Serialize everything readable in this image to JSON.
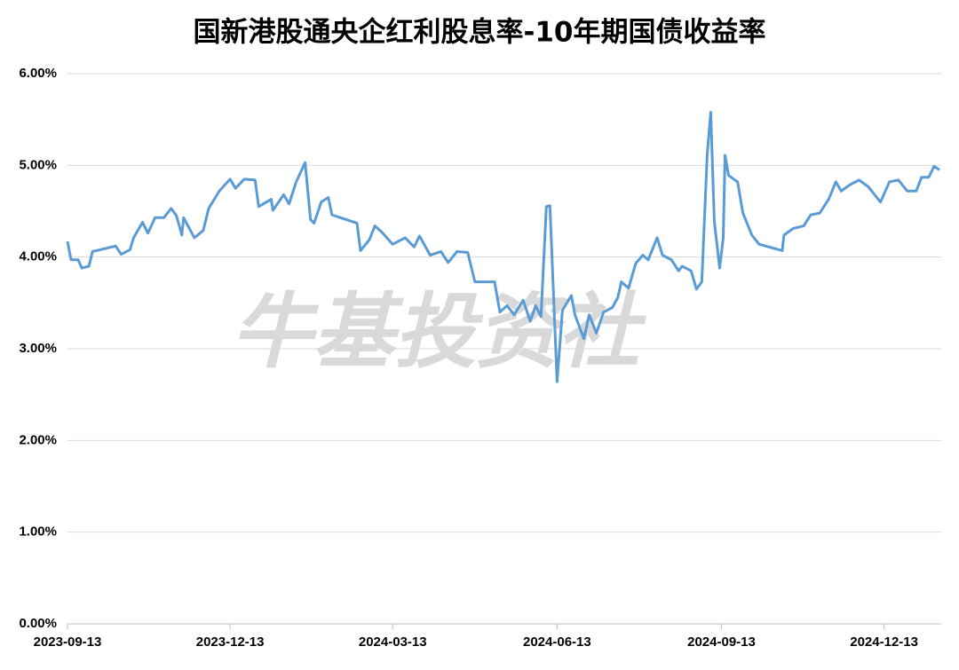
{
  "chart_data": {
    "type": "line",
    "title": "国新港股通央企红利股息率-10年期国债收益率",
    "watermark": "牛基投资社",
    "color": "#5b9bd5",
    "grid": true,
    "ylim": [
      0,
      6
    ],
    "yticks": [
      {
        "value": 0,
        "label": "0.00%"
      },
      {
        "value": 1,
        "label": "1.00%"
      },
      {
        "value": 2,
        "label": "2.00%"
      },
      {
        "value": 3,
        "label": "3.00%"
      },
      {
        "value": 4,
        "label": "4.00%"
      },
      {
        "value": 5,
        "label": "5.00%"
      },
      {
        "value": 6,
        "label": "6.00%"
      }
    ],
    "xlim": [
      "2023-09-13",
      "2025-01-14"
    ],
    "xticks": [
      "2023-09-13",
      "2023-12-13",
      "2024-03-13",
      "2024-06-13",
      "2024-09-13",
      "2024-12-13"
    ],
    "x": [
      "2023-09-13",
      "2023-09-15",
      "2023-09-19",
      "2023-09-21",
      "2023-09-25",
      "2023-09-27",
      "2023-10-10",
      "2023-10-13",
      "2023-10-18",
      "2023-10-20",
      "2023-10-25",
      "2023-10-28",
      "2023-11-01",
      "2023-11-06",
      "2023-11-10",
      "2023-11-13",
      "2023-11-16",
      "2023-11-17",
      "2023-11-23",
      "2023-11-28",
      "2023-12-01",
      "2023-12-07",
      "2023-12-13",
      "2023-12-16",
      "2023-12-21",
      "2023-12-27",
      "2023-12-29",
      "2024-01-05",
      "2024-01-06",
      "2024-01-12",
      "2024-01-15",
      "2024-01-19",
      "2024-01-24",
      "2024-01-27",
      "2024-01-29",
      "2024-02-02",
      "2024-02-06",
      "2024-02-08",
      "2024-02-22",
      "2024-02-24",
      "2024-02-29",
      "2024-03-03",
      "2024-03-07",
      "2024-03-13",
      "2024-03-20",
      "2024-03-25",
      "2024-03-28",
      "2024-04-03",
      "2024-04-09",
      "2024-04-13",
      "2024-04-18",
      "2024-04-24",
      "2024-04-28",
      "2024-05-09",
      "2024-05-12",
      "2024-05-16",
      "2024-05-20",
      "2024-05-25",
      "2024-05-29",
      "2024-06-01",
      "2024-06-04",
      "2024-06-07",
      "2024-06-09",
      "2024-06-13",
      "2024-06-16",
      "2024-06-21",
      "2024-06-23",
      "2024-06-28",
      "2024-07-01",
      "2024-07-05",
      "2024-07-09",
      "2024-07-14",
      "2024-07-17",
      "2024-07-19",
      "2024-07-23",
      "2024-07-27",
      "2024-07-31",
      "2024-08-03",
      "2024-08-08",
      "2024-08-11",
      "2024-08-16",
      "2024-08-20",
      "2024-08-22",
      "2024-08-27",
      "2024-08-30",
      "2024-09-02",
      "2024-09-05",
      "2024-09-07",
      "2024-09-09",
      "2024-09-12",
      "2024-09-14",
      "2024-09-15",
      "2024-09-17",
      "2024-09-22",
      "2024-09-25",
      "2024-09-30",
      "2024-10-04",
      "2024-10-17",
      "2024-10-18",
      "2024-10-23",
      "2024-10-29",
      "2024-11-02",
      "2024-11-07",
      "2024-11-12",
      "2024-11-16",
      "2024-11-19",
      "2024-11-24",
      "2024-11-29",
      "2024-12-04",
      "2024-12-11",
      "2024-12-16",
      "2024-12-21",
      "2024-12-26",
      "2024-12-31",
      "2025-01-03",
      "2025-01-07",
      "2025-01-10",
      "2025-01-13"
    ],
    "values": [
      4.17,
      3.97,
      3.97,
      3.88,
      3.9,
      4.06,
      4.12,
      4.03,
      4.08,
      4.21,
      4.38,
      4.26,
      4.43,
      4.43,
      4.53,
      4.45,
      4.24,
      4.43,
      4.21,
      4.29,
      4.53,
      4.72,
      4.85,
      4.75,
      4.85,
      4.84,
      4.55,
      4.63,
      4.51,
      4.68,
      4.58,
      4.82,
      5.03,
      4.41,
      4.37,
      4.6,
      4.65,
      4.46,
      4.37,
      4.07,
      4.19,
      4.34,
      4.27,
      4.14,
      4.21,
      4.11,
      4.23,
      4.02,
      4.06,
      3.94,
      4.06,
      4.05,
      3.73,
      3.73,
      3.4,
      3.47,
      3.37,
      3.53,
      3.3,
      3.47,
      3.35,
      4.55,
      4.56,
      2.64,
      3.42,
      3.58,
      3.37,
      3.11,
      3.37,
      3.17,
      3.4,
      3.45,
      3.56,
      3.73,
      3.66,
      3.93,
      4.02,
      3.97,
      4.21,
      4.02,
      3.97,
      3.85,
      3.9,
      3.85,
      3.65,
      3.73,
      5.11,
      5.58,
      4.39,
      3.88,
      4.21,
      5.11,
      4.89,
      4.82,
      4.48,
      4.24,
      4.14,
      4.07,
      4.24,
      4.31,
      4.34,
      4.46,
      4.48,
      4.63,
      4.82,
      4.72,
      4.79,
      4.84,
      4.77,
      4.6,
      4.82,
      4.84,
      4.72,
      4.72,
      4.87,
      4.87,
      4.99,
      4.95
    ]
  }
}
